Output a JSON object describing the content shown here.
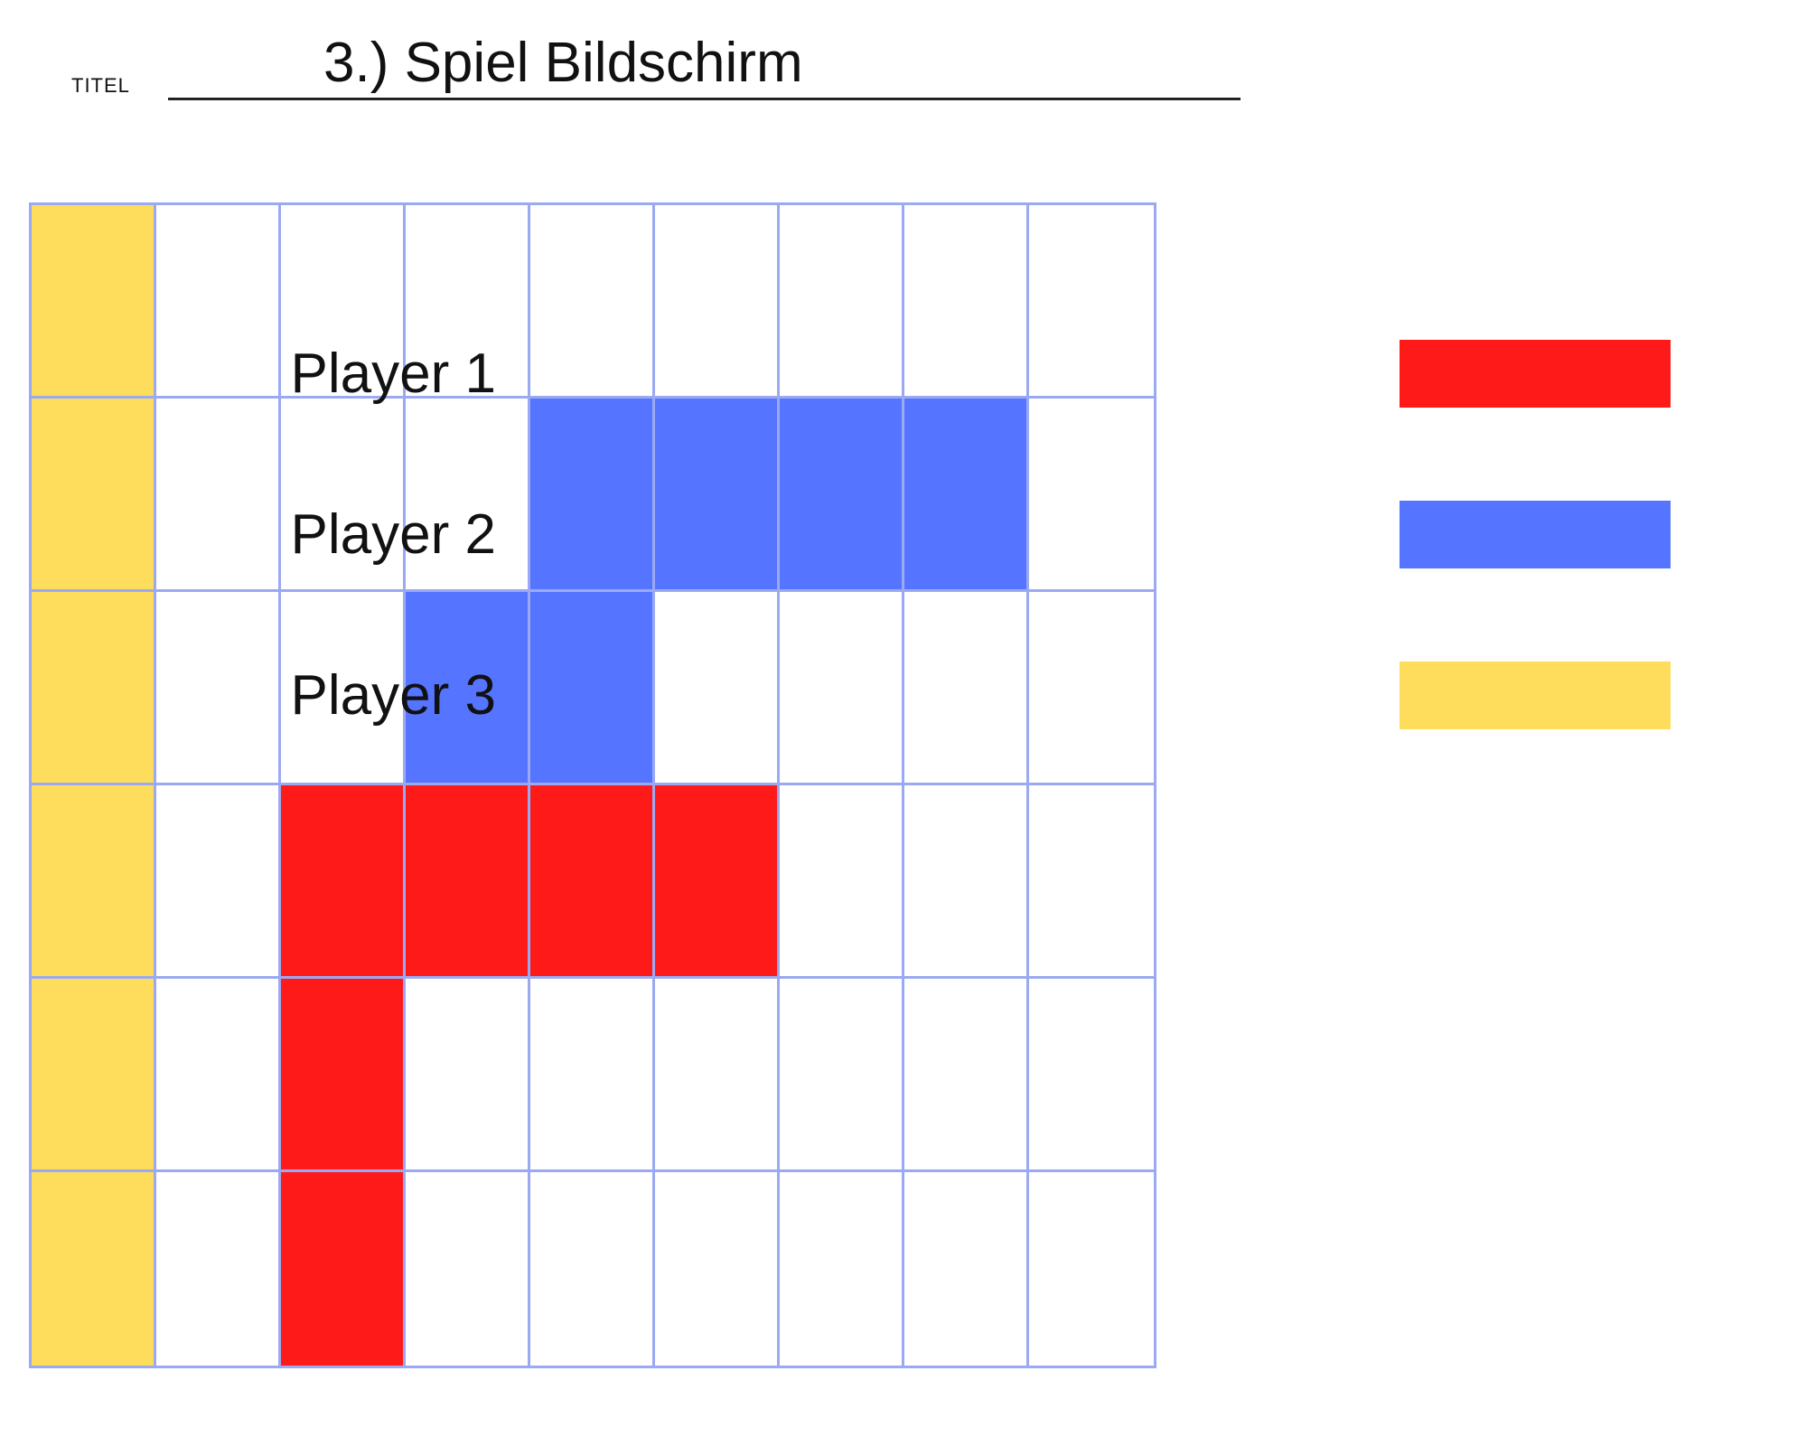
{
  "header": {
    "titel_label": "TITEL",
    "title": "3.) Spiel Bildschirm"
  },
  "colors": {
    "grid_line": "#9ba9f3",
    "empty": "#ffffff",
    "player_1": "#ff1a1a",
    "player_2": "#5574ff",
    "player_3": "#ffdd5c"
  },
  "board": {
    "columns": 9,
    "rows": 6,
    "cells": [
      [
        3,
        0,
        0,
        0,
        0,
        0,
        0,
        0,
        0
      ],
      [
        3,
        0,
        0,
        0,
        2,
        2,
        2,
        2,
        0
      ],
      [
        3,
        0,
        0,
        2,
        2,
        0,
        0,
        0,
        0
      ],
      [
        3,
        0,
        1,
        1,
        1,
        1,
        0,
        0,
        0
      ],
      [
        3,
        0,
        1,
        0,
        0,
        0,
        0,
        0,
        0
      ],
      [
        3,
        0,
        1,
        0,
        0,
        0,
        0,
        0,
        0
      ]
    ]
  },
  "legend": [
    {
      "label": "Player 1",
      "color": "#ff1a1a"
    },
    {
      "label": "Player 2",
      "color": "#5574ff"
    },
    {
      "label": "Player 3",
      "color": "#ffdd5c"
    }
  ]
}
